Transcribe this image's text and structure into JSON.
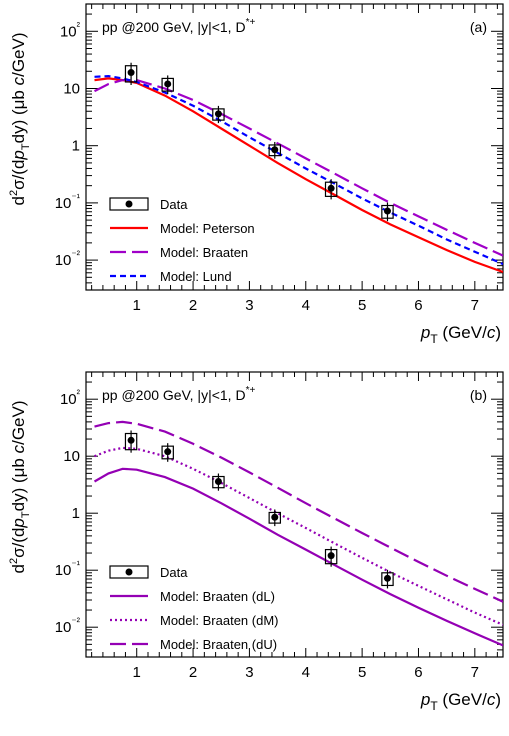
{
  "chart_data": [
    {
      "type": "line",
      "panel_label": "(a)",
      "annotation": "pp @200 GeV, |y|<1, D",
      "annotation_sup": "*+",
      "xlabel_main": "p",
      "xlabel_sub": "T",
      "xlabel_unit": "(GeV/",
      "xlabel_unit_italic": "c",
      "xlabel_close": ")",
      "ylabel": "d²σ/(dp_T dy) (μb c/GeV)",
      "xlim": [
        0.1,
        7.5
      ],
      "ylim": [
        0.003,
        300
      ],
      "yscale": "log",
      "xticks": [
        1,
        2,
        3,
        4,
        5,
        6,
        7
      ],
      "xtick_labels": [
        "1",
        "2",
        "3",
        "4",
        "5",
        "6",
        "7"
      ],
      "ytick_labels": [
        "10⁻²",
        "10⁻¹",
        "1",
        "10",
        "10²"
      ],
      "legend_position": "bottom-left",
      "data_points": {
        "name": "Data",
        "points": [
          {
            "x": 0.9,
            "y": 19,
            "yerr": [
              6,
              6
            ],
            "xerr": 0.1
          },
          {
            "x": 1.55,
            "y": 12,
            "yerr": [
              3,
              3
            ],
            "xerr": 0.1
          },
          {
            "x": 2.45,
            "y": 3.6,
            "yerr": [
              0.8,
              0.8
            ],
            "xerr": 0.1
          },
          {
            "x": 3.45,
            "y": 0.85,
            "yerr": [
              0.18,
              0.18
            ],
            "xerr": 0.1
          },
          {
            "x": 4.45,
            "y": 0.18,
            "yerr": [
              0.05,
              0.05
            ],
            "xerr": 0.1
          },
          {
            "x": 5.45,
            "y": 0.072,
            "yerr": [
              0.018,
              0.018
            ],
            "xerr": 0.1
          }
        ]
      },
      "series": [
        {
          "name": "Model: Peterson",
          "color": "#ff0000",
          "style": "solid",
          "x": [
            0.25,
            0.5,
            0.75,
            1.0,
            1.5,
            2.0,
            2.5,
            3.0,
            3.5,
            4.0,
            4.5,
            5.0,
            5.5,
            6.0,
            6.5,
            7.0,
            7.5
          ],
          "y": [
            14,
            15,
            14,
            12.5,
            7.5,
            4,
            2.0,
            1.0,
            0.5,
            0.26,
            0.14,
            0.075,
            0.042,
            0.025,
            0.015,
            0.0093,
            0.0062
          ]
        },
        {
          "name": "Model: Braaten",
          "color": "#a000c8",
          "style": "longdash",
          "x": [
            0.25,
            0.5,
            0.75,
            1.0,
            1.5,
            2.0,
            2.5,
            3.0,
            3.5,
            4.0,
            4.5,
            5.0,
            5.5,
            6.0,
            6.5,
            7.0,
            7.5
          ],
          "y": [
            9,
            12,
            14,
            14,
            10,
            6.3,
            3.6,
            2.0,
            1.1,
            0.6,
            0.33,
            0.18,
            0.1,
            0.058,
            0.034,
            0.02,
            0.012
          ]
        },
        {
          "name": "Model: Lund",
          "color": "#0000ff",
          "style": "dash",
          "x": [
            0.25,
            0.5,
            0.75,
            1.0,
            1.5,
            2.0,
            2.5,
            3.0,
            3.5,
            4.0,
            4.5,
            5.0,
            5.5,
            6.0,
            6.5,
            7.0,
            7.5
          ],
          "y": [
            16,
            16.5,
            15,
            13,
            8.5,
            5,
            2.7,
            1.4,
            0.75,
            0.4,
            0.22,
            0.12,
            0.068,
            0.04,
            0.023,
            0.014,
            0.0085
          ]
        }
      ]
    },
    {
      "type": "line",
      "panel_label": "(b)",
      "annotation": "pp @200 GeV, |y|<1, D",
      "annotation_sup": "*+",
      "xlabel_main": "p",
      "xlabel_sub": "T",
      "xlabel_unit": "(GeV/",
      "xlabel_unit_italic": "c",
      "xlabel_close": ")",
      "ylabel": "d²σ/(dp_T dy) (μb c/GeV)",
      "xlim": [
        0.1,
        7.5
      ],
      "ylim": [
        0.003,
        300
      ],
      "yscale": "log",
      "xticks": [
        1,
        2,
        3,
        4,
        5,
        6,
        7
      ],
      "xtick_labels": [
        "1",
        "2",
        "3",
        "4",
        "5",
        "6",
        "7"
      ],
      "ytick_labels": [
        "10⁻²",
        "10⁻¹",
        "1",
        "10",
        "10²"
      ],
      "legend_position": "bottom-left",
      "data_points": {
        "name": "Data",
        "points": [
          {
            "x": 0.9,
            "y": 19,
            "yerr": [
              6,
              6
            ],
            "xerr": 0.1
          },
          {
            "x": 1.55,
            "y": 12,
            "yerr": [
              3,
              3
            ],
            "xerr": 0.1
          },
          {
            "x": 2.45,
            "y": 3.6,
            "yerr": [
              0.8,
              0.8
            ],
            "xerr": 0.1
          },
          {
            "x": 3.45,
            "y": 0.85,
            "yerr": [
              0.18,
              0.18
            ],
            "xerr": 0.1
          },
          {
            "x": 4.45,
            "y": 0.18,
            "yerr": [
              0.05,
              0.05
            ],
            "xerr": 0.1
          },
          {
            "x": 5.45,
            "y": 0.072,
            "yerr": [
              0.018,
              0.018
            ],
            "xerr": 0.1
          }
        ]
      },
      "series": [
        {
          "name": "Model: Braaten (dL)",
          "color": "#9400b4",
          "style": "solid",
          "x": [
            0.25,
            0.5,
            0.75,
            1.0,
            1.5,
            2.0,
            2.5,
            3.0,
            3.5,
            4.0,
            4.5,
            5.0,
            5.5,
            6.0,
            6.5,
            7.0,
            7.5
          ],
          "y": [
            3.6,
            5,
            6,
            5.8,
            4.3,
            2.7,
            1.5,
            0.8,
            0.42,
            0.23,
            0.125,
            0.068,
            0.038,
            0.022,
            0.013,
            0.0078,
            0.0048
          ]
        },
        {
          "name": "Model: Braaten (dM)",
          "color": "#9400b4",
          "style": "dot",
          "x": [
            0.25,
            0.5,
            0.75,
            1.0,
            1.5,
            2.0,
            2.5,
            3.0,
            3.5,
            4.0,
            4.5,
            5.0,
            5.5,
            6.0,
            6.5,
            7.0,
            7.5
          ],
          "y": [
            10,
            12.5,
            14,
            13.5,
            10,
            6,
            3.4,
            1.85,
            1.0,
            0.55,
            0.3,
            0.165,
            0.092,
            0.053,
            0.031,
            0.018,
            0.011
          ]
        },
        {
          "name": "Model: Braaten (dU)",
          "color": "#9400b4",
          "style": "longdash",
          "x": [
            0.25,
            0.5,
            0.75,
            1.0,
            1.5,
            2.0,
            2.5,
            3.0,
            3.5,
            4.0,
            4.5,
            5.0,
            5.5,
            6.0,
            6.5,
            7.0,
            7.5
          ],
          "y": [
            33,
            38,
            40,
            37,
            27,
            16.5,
            9.5,
            5.2,
            2.8,
            1.5,
            0.82,
            0.45,
            0.25,
            0.14,
            0.08,
            0.047,
            0.028
          ]
        }
      ]
    }
  ]
}
